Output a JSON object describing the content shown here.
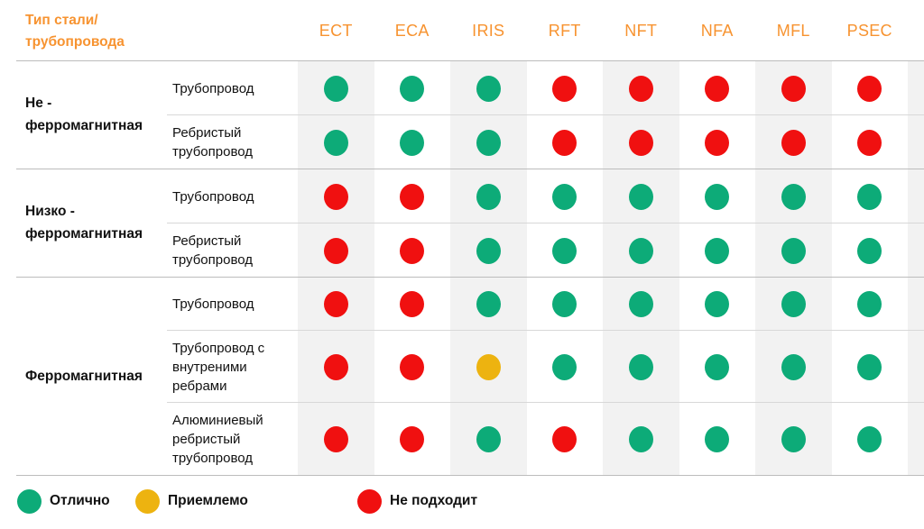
{
  "accent_color": "#f79330",
  "stripe_color": "#f2f2f2",
  "chart_data": {
    "type": "table",
    "corner_label": "Тип стали/\nтрубопровода",
    "columns": [
      "ECT",
      "ECA",
      "IRIS",
      "RFT",
      "NFT",
      "NFA",
      "MFL",
      "PSEC"
    ],
    "rating_colors": {
      "excellent": "#0dab78",
      "acceptable": "#edb310",
      "not_suitable": "#f01010"
    },
    "row_groups": [
      {
        "label": "Не -\nферромагнитная",
        "rows": [
          {
            "label": "Трубопровод",
            "ratings": [
              "excellent",
              "excellent",
              "excellent",
              "not_suitable",
              "not_suitable",
              "not_suitable",
              "not_suitable",
              "not_suitable"
            ]
          },
          {
            "label": "Ребристый трубопровод",
            "ratings": [
              "excellent",
              "excellent",
              "excellent",
              "not_suitable",
              "not_suitable",
              "not_suitable",
              "not_suitable",
              "not_suitable"
            ]
          }
        ]
      },
      {
        "label": "Низко -\nферромагнитная",
        "rows": [
          {
            "label": "Трубопровод",
            "ratings": [
              "not_suitable",
              "not_suitable",
              "excellent",
              "excellent",
              "excellent",
              "excellent",
              "excellent",
              "excellent"
            ]
          },
          {
            "label": "Ребристый трубопровод",
            "ratings": [
              "not_suitable",
              "not_suitable",
              "excellent",
              "excellent",
              "excellent",
              "excellent",
              "excellent",
              "excellent"
            ]
          }
        ]
      },
      {
        "label": "Ферромагнитная",
        "rows": [
          {
            "label": "Трубопровод",
            "ratings": [
              "not_suitable",
              "not_suitable",
              "excellent",
              "excellent",
              "excellent",
              "excellent",
              "excellent",
              "excellent"
            ]
          },
          {
            "label": "Трубопровод с внутреними ребрами",
            "ratings": [
              "not_suitable",
              "not_suitable",
              "acceptable",
              "excellent",
              "excellent",
              "excellent",
              "excellent",
              "excellent"
            ]
          },
          {
            "label": "Алюминиевый ребристый трубопровод",
            "ratings": [
              "not_suitable",
              "not_suitable",
              "excellent",
              "not_suitable",
              "excellent",
              "excellent",
              "excellent",
              "excellent"
            ]
          }
        ]
      }
    ],
    "legend": [
      {
        "label": "Отлично",
        "status": "excellent"
      },
      {
        "label": "Приемлемо",
        "status": "acceptable"
      },
      {
        "label": "Не подходит",
        "status": "not_suitable"
      }
    ]
  }
}
